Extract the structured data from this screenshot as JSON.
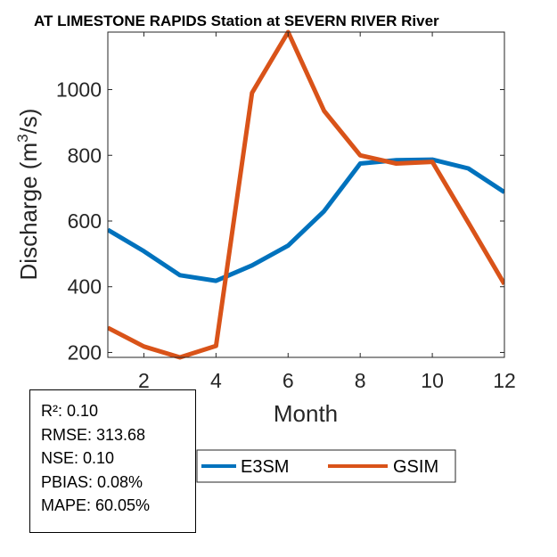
{
  "chart_data": {
    "type": "line",
    "title": "AT LIMESTONE RAPIDS  Station at  SEVERN RIVER  River",
    "xlabel": "Month",
    "ylabel_main": "Discharge (m",
    "ylabel_sup": "3",
    "ylabel_tail": "/s)",
    "xlim": [
      1,
      12
    ],
    "ylim": [
      185,
      1175
    ],
    "xticks": [
      2,
      4,
      6,
      8,
      10,
      12
    ],
    "yticks": [
      200,
      400,
      600,
      800,
      1000
    ],
    "x": [
      1,
      2,
      3,
      4,
      5,
      6,
      7,
      8,
      9,
      10,
      11,
      12
    ],
    "series": [
      {
        "name": "E3SM",
        "color": "#0072BD",
        "values": [
          573,
          508,
          435,
          418,
          465,
          525,
          630,
          775,
          785,
          787,
          760,
          688
        ]
      },
      {
        "name": "GSIM",
        "color": "#D95319",
        "values": [
          275,
          218,
          185,
          220,
          990,
          1175,
          935,
          800,
          775,
          780,
          595,
          408
        ]
      }
    ],
    "legend_position": "bottom-center"
  },
  "stats": {
    "r2": "R²: 0.10",
    "rmse": "RMSE: 313.68",
    "nse": "NSE: 0.10",
    "pbias": "PBIAS: 0.08%",
    "mape": "MAPE: 60.05%"
  }
}
